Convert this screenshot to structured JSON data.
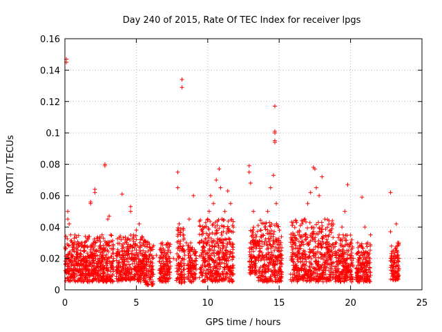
{
  "chart_data": {
    "type": "scatter",
    "title": "Day 240 of 2015, Rate Of TEC Index for receiver lpgs",
    "xlabel": "GPS time / hours",
    "ylabel": "ROTI / TECUs",
    "xlim": [
      0,
      25
    ],
    "ylim": [
      0,
      0.16
    ],
    "xticks": [
      0,
      5,
      10,
      15,
      20,
      25
    ],
    "xtick_labels": [
      "0",
      "5",
      "10",
      "15",
      "20",
      "25"
    ],
    "yticks": [
      0,
      0.02,
      0.04,
      0.06,
      0.08,
      0.1,
      0.12,
      0.14,
      0.16
    ],
    "ytick_labels": [
      "0",
      "0.02",
      "0.04",
      "0.06",
      "0.08",
      "0.1",
      "0.12",
      "0.14",
      "0.16"
    ],
    "grid": true,
    "marker": "+",
    "series": [
      {
        "name": "ROTI",
        "color": "#ff0000",
        "points": [
          [
            0.1,
            0.147
          ],
          [
            0.1,
            0.145
          ],
          [
            0.2,
            0.05
          ],
          [
            0.2,
            0.045
          ],
          [
            0.3,
            0.042
          ],
          [
            0.4,
            0.035
          ],
          [
            0.5,
            0.03
          ],
          [
            0.6,
            0.028
          ],
          [
            0.1,
            0.02
          ],
          [
            0.2,
            0.015
          ],
          [
            0.3,
            0.012
          ],
          [
            0.4,
            0.018
          ],
          [
            0.5,
            0.022
          ],
          [
            0.6,
            0.01
          ],
          [
            0.7,
            0.014
          ],
          [
            0.8,
            0.02
          ],
          [
            0.9,
            0.016
          ],
          [
            1.0,
            0.012
          ],
          [
            1.1,
            0.025
          ],
          [
            1.2,
            0.03
          ],
          [
            1.3,
            0.018
          ],
          [
            1.4,
            0.015
          ],
          [
            1.5,
            0.02
          ],
          [
            1.6,
            0.033
          ],
          [
            1.8,
            0.056
          ],
          [
            1.8,
            0.055
          ],
          [
            1.9,
            0.022
          ],
          [
            2.0,
            0.03
          ],
          [
            2.1,
            0.064
          ],
          [
            2.1,
            0.062
          ],
          [
            2.2,
            0.025
          ],
          [
            2.3,
            0.018
          ],
          [
            2.4,
            0.02
          ],
          [
            2.5,
            0.028
          ],
          [
            2.6,
            0.035
          ],
          [
            2.7,
            0.022
          ],
          [
            2.8,
            0.08
          ],
          [
            2.8,
            0.079
          ],
          [
            2.9,
            0.03
          ],
          [
            3.0,
            0.045
          ],
          [
            3.1,
            0.047
          ],
          [
            3.2,
            0.035
          ],
          [
            3.3,
            0.015
          ],
          [
            3.4,
            0.02
          ],
          [
            3.6,
            0.012
          ],
          [
            3.8,
            0.018
          ],
          [
            4.0,
            0.061
          ],
          [
            4.0,
            0.025
          ],
          [
            4.2,
            0.03
          ],
          [
            4.4,
            0.02
          ],
          [
            4.6,
            0.053
          ],
          [
            4.6,
            0.05
          ],
          [
            4.8,
            0.035
          ],
          [
            5.0,
            0.038
          ],
          [
            5.2,
            0.042
          ],
          [
            5.4,
            0.015
          ],
          [
            5.6,
            0.02
          ],
          [
            5.8,
            0.03
          ],
          [
            6.0,
            0.025
          ],
          [
            6.2,
            0.01
          ],
          [
            6.4,
            0.022
          ],
          [
            6.6,
            0.018
          ],
          [
            6.8,
            0.012
          ],
          [
            7.0,
            0.025
          ],
          [
            7.2,
            0.03
          ],
          [
            7.4,
            0.015
          ],
          [
            7.6,
            0.02
          ],
          [
            7.9,
            0.075
          ],
          [
            7.9,
            0.065
          ],
          [
            8.0,
            0.042
          ],
          [
            8.1,
            0.035
          ],
          [
            8.2,
            0.134
          ],
          [
            8.2,
            0.129
          ],
          [
            8.3,
            0.025
          ],
          [
            8.5,
            0.03
          ],
          [
            8.7,
            0.045
          ],
          [
            8.8,
            0.022
          ],
          [
            9.0,
            0.06
          ],
          [
            9.2,
            0.02
          ],
          [
            9.4,
            0.03
          ],
          [
            9.6,
            0.035
          ],
          [
            9.8,
            0.04
          ],
          [
            10.0,
            0.045
          ],
          [
            10.1,
            0.05
          ],
          [
            10.2,
            0.06
          ],
          [
            10.4,
            0.055
          ],
          [
            10.6,
            0.07
          ],
          [
            10.8,
            0.077
          ],
          [
            10.9,
            0.065
          ],
          [
            11.0,
            0.045
          ],
          [
            11.2,
            0.05
          ],
          [
            11.4,
            0.063
          ],
          [
            11.6,
            0.055
          ],
          [
            11.8,
            0.04
          ],
          [
            12.9,
            0.079
          ],
          [
            12.9,
            0.075
          ],
          [
            13.0,
            0.068
          ],
          [
            13.2,
            0.05
          ],
          [
            13.5,
            0.03
          ],
          [
            13.8,
            0.035
          ],
          [
            14.0,
            0.04
          ],
          [
            14.2,
            0.05
          ],
          [
            14.4,
            0.065
          ],
          [
            14.6,
            0.073
          ],
          [
            14.7,
            0.117
          ],
          [
            14.7,
            0.101
          ],
          [
            14.7,
            0.1
          ],
          [
            14.7,
            0.095
          ],
          [
            14.7,
            0.094
          ],
          [
            14.8,
            0.055
          ],
          [
            15.0,
            0.03
          ],
          [
            15.2,
            0.02
          ],
          [
            16.0,
            0.03
          ],
          [
            16.4,
            0.035
          ],
          [
            16.8,
            0.045
          ],
          [
            17.0,
            0.055
          ],
          [
            17.2,
            0.062
          ],
          [
            17.4,
            0.078
          ],
          [
            17.5,
            0.077
          ],
          [
            17.6,
            0.065
          ],
          [
            17.8,
            0.06
          ],
          [
            18.0,
            0.072
          ],
          [
            18.2,
            0.045
          ],
          [
            18.5,
            0.035
          ],
          [
            19.0,
            0.03
          ],
          [
            19.2,
            0.035
          ],
          [
            19.4,
            0.04
          ],
          [
            19.6,
            0.05
          ],
          [
            19.8,
            0.067
          ],
          [
            20.0,
            0.03
          ],
          [
            20.2,
            0.02
          ],
          [
            20.5,
            0.03
          ],
          [
            20.8,
            0.059
          ],
          [
            21.0,
            0.04
          ],
          [
            21.2,
            0.03
          ],
          [
            21.4,
            0.035
          ],
          [
            22.8,
            0.062
          ],
          [
            22.8,
            0.037
          ],
          [
            22.9,
            0.02
          ],
          [
            23.0,
            0.015
          ],
          [
            23.2,
            0.042
          ],
          [
            23.3,
            0.03
          ],
          [
            23.4,
            0.02
          ]
        ],
        "clusters": [
          {
            "x_range": [
              0.0,
              3.4
            ],
            "y_range": [
              0.005,
              0.035
            ]
          },
          {
            "x_range": [
              3.6,
              5.6
            ],
            "y_range": [
              0.005,
              0.035
            ]
          },
          {
            "x_range": [
              5.6,
              6.2
            ],
            "y_range": [
              0.003,
              0.032
            ]
          },
          {
            "x_range": [
              6.6,
              7.4
            ],
            "y_range": [
              0.005,
              0.03
            ]
          },
          {
            "x_range": [
              7.8,
              8.4
            ],
            "y_range": [
              0.004,
              0.04
            ]
          },
          {
            "x_range": [
              8.6,
              9.2
            ],
            "y_range": [
              0.005,
              0.03
            ]
          },
          {
            "x_range": [
              9.4,
              11.8
            ],
            "y_range": [
              0.005,
              0.045
            ]
          },
          {
            "x_range": [
              12.9,
              13.5
            ],
            "y_range": [
              0.01,
              0.04
            ]
          },
          {
            "x_range": [
              13.5,
              15.2
            ],
            "y_range": [
              0.005,
              0.045
            ]
          },
          {
            "x_range": [
              15.8,
              18.8
            ],
            "y_range": [
              0.005,
              0.045
            ]
          },
          {
            "x_range": [
              18.9,
              20.2
            ],
            "y_range": [
              0.005,
              0.035
            ]
          },
          {
            "x_range": [
              20.4,
              21.4
            ],
            "y_range": [
              0.005,
              0.03
            ]
          },
          {
            "x_range": [
              22.8,
              23.4
            ],
            "y_range": [
              0.006,
              0.03
            ]
          }
        ]
      }
    ]
  }
}
